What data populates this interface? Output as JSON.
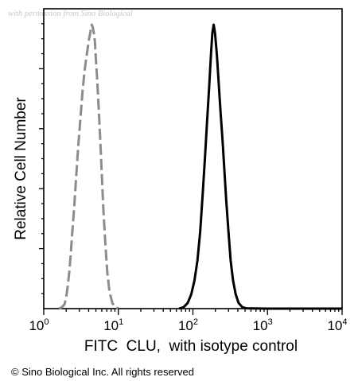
{
  "watermark": "with permission from Sino Biological",
  "copyright": "© Sino Biological Inc. All rights reserved",
  "chart_data": {
    "type": "line",
    "xscale": "log",
    "xlim": [
      1,
      10000
    ],
    "ylim": [
      0,
      100
    ],
    "xlabel": "FITC  CLU,  with isotype control",
    "ylabel": "Relative Cell Number",
    "x_ticks": [
      {
        "base": "10",
        "exp": "0",
        "value": 1
      },
      {
        "base": "10",
        "exp": "1",
        "value": 10
      },
      {
        "base": "10",
        "exp": "2",
        "value": 100
      },
      {
        "base": "10",
        "exp": "3",
        "value": 1000
      },
      {
        "base": "10",
        "exp": "4",
        "value": 10000
      }
    ],
    "grid": false,
    "series": [
      {
        "color": "#8c8c8c",
        "style": "dashed",
        "points": [
          [
            1.6,
            0
          ],
          [
            1.75,
            0.5
          ],
          [
            1.9,
            1.5
          ],
          [
            2.0,
            4
          ],
          [
            2.1,
            8
          ],
          [
            2.2,
            13
          ],
          [
            2.3,
            19
          ],
          [
            2.4,
            26
          ],
          [
            2.55,
            35
          ],
          [
            2.7,
            45
          ],
          [
            2.9,
            57
          ],
          [
            3.1,
            67
          ],
          [
            3.3,
            76
          ],
          [
            3.5,
            83
          ],
          [
            3.7,
            88
          ],
          [
            3.9,
            92
          ],
          [
            4.05,
            95
          ],
          [
            4.2,
            97
          ],
          [
            4.4,
            100
          ],
          [
            4.55,
            99
          ],
          [
            4.7,
            97
          ],
          [
            4.85,
            94
          ],
          [
            5.0,
            88
          ],
          [
            5.2,
            81
          ],
          [
            5.45,
            71
          ],
          [
            5.7,
            60
          ],
          [
            6.0,
            47
          ],
          [
            6.3,
            35
          ],
          [
            6.7,
            23
          ],
          [
            7.1,
            13
          ],
          [
            7.6,
            6
          ],
          [
            8.3,
            2
          ],
          [
            9.0,
            0.5
          ],
          [
            10.0,
            0.1
          ]
        ]
      },
      {
        "color": "#000000",
        "style": "solid",
        "points": [
          [
            65,
            0
          ],
          [
            75,
            0.5
          ],
          [
            85,
            2
          ],
          [
            95,
            5
          ],
          [
            105,
            10
          ],
          [
            115,
            17
          ],
          [
            125,
            27
          ],
          [
            135,
            40
          ],
          [
            145,
            53
          ],
          [
            155,
            66
          ],
          [
            165,
            78
          ],
          [
            175,
            90
          ],
          [
            182,
            97
          ],
          [
            190,
            100
          ],
          [
            198,
            97
          ],
          [
            210,
            89
          ],
          [
            222,
            79
          ],
          [
            235,
            69
          ],
          [
            250,
            59
          ],
          [
            265,
            48
          ],
          [
            280,
            38
          ],
          [
            300,
            27
          ],
          [
            320,
            17
          ],
          [
            345,
            10
          ],
          [
            375,
            5
          ],
          [
            410,
            2
          ],
          [
            460,
            0.5
          ],
          [
            520,
            0.1
          ],
          [
            1000,
            0
          ],
          [
            10000,
            0
          ]
        ]
      }
    ]
  }
}
